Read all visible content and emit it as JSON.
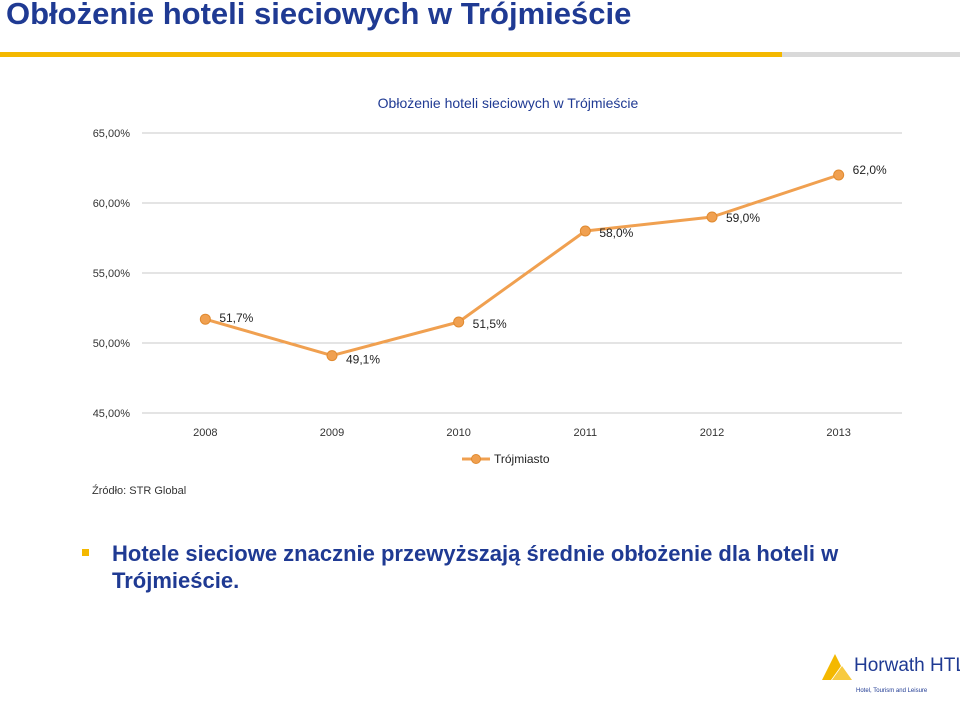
{
  "slide": {
    "title": "Obłożenie hoteli sieciowych w Trójmieście",
    "source": "Źródło: STR Global",
    "bullet": "Hotele sieciowe znacznie przewyższają średnie obłożenie dla hoteli w Trójmieście."
  },
  "colors": {
    "line": "#f0a050",
    "title": "#1f3a93",
    "accent": "#f4b800"
  },
  "logo": {
    "name": "Horwath HTL",
    "tagline": "Hotel, Tourism and Leisure"
  },
  "chart_data": {
    "type": "line",
    "title": "Obłożenie hoteli  sieciowych w Trójmieście",
    "categories": [
      "2008",
      "2009",
      "2010",
      "2011",
      "2012",
      "2013"
    ],
    "series": [
      {
        "name": "Trójmiasto",
        "values": [
          51.7,
          49.1,
          51.5,
          58.0,
          59.0,
          62.0
        ]
      }
    ],
    "data_labels": [
      "51,7%",
      "49,1%",
      "51,5%",
      "58,0%",
      "59,0%",
      "62,0%"
    ],
    "y_ticks": [
      "45,00%",
      "50,00%",
      "55,00%",
      "60,00%",
      "65,00%"
    ],
    "ylim": [
      45,
      65
    ],
    "grid": true,
    "legend": "bottom"
  }
}
